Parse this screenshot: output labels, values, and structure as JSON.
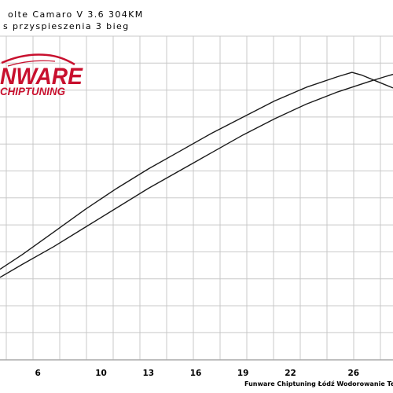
{
  "header": {
    "title": "olte Camaro V 3.6 304KM",
    "subtitle": "s przyspieszenia 3 bieg"
  },
  "logo": {
    "main": "NWARE",
    "sub": "CHIPTUNING"
  },
  "footer": {
    "credit": "Funware Chiptuning Łódź Wodorowanie Te"
  },
  "chart_data": {
    "type": "line",
    "title": "",
    "xlabel": "",
    "ylabel": "",
    "x_ticks": [
      6,
      10,
      13,
      16,
      19,
      22,
      26
    ],
    "xlim": [
      3.6,
      28.5
    ],
    "ylim": [
      0,
      100
    ],
    "grid": true,
    "colors": {
      "lines": "#1a1a1a",
      "grid": "#c8c8c8",
      "logo": "#c8102e"
    },
    "series": [
      {
        "x": [
          3.6,
          5,
          7,
          9,
          11,
          13,
          15,
          17,
          19,
          21,
          23,
          25,
          25.9,
          26.5,
          27.5,
          28.5
        ],
        "y": [
          28.0,
          32.5,
          39.5,
          46.5,
          53.0,
          59.0,
          64.5,
          70.0,
          75.0,
          80.0,
          84.2,
          87.5,
          88.8,
          88.0,
          86.0,
          84.0
        ]
      },
      {
        "x": [
          3.6,
          5,
          7,
          9,
          11,
          13,
          15,
          17,
          19,
          21,
          23,
          25,
          27,
          28,
          28.5
        ],
        "y": [
          25.5,
          29.5,
          35.0,
          41.0,
          47.0,
          53.0,
          58.5,
          64.0,
          69.5,
          74.5,
          79.0,
          82.8,
          86.0,
          87.5,
          88.2
        ]
      }
    ]
  }
}
